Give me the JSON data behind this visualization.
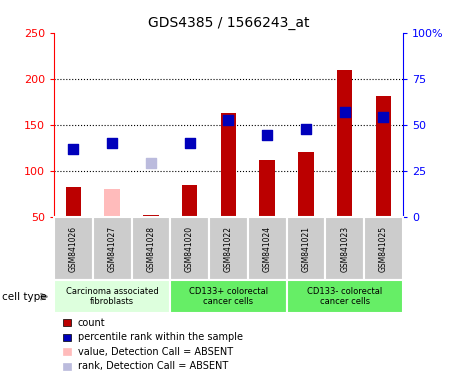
{
  "title": "GDS4385 / 1566243_at",
  "samples": [
    "GSM841026",
    "GSM841027",
    "GSM841028",
    "GSM841020",
    "GSM841022",
    "GSM841024",
    "GSM841021",
    "GSM841023",
    "GSM841025"
  ],
  "count_values": [
    83,
    80,
    52,
    85,
    163,
    112,
    120,
    209,
    181
  ],
  "count_absent": [
    false,
    true,
    false,
    false,
    false,
    false,
    false,
    false,
    false
  ],
  "percentile_values": [
    124,
    130,
    109,
    130,
    155,
    139,
    145,
    164,
    158
  ],
  "percentile_absent": [
    false,
    false,
    true,
    false,
    false,
    false,
    false,
    false,
    false
  ],
  "bar_color_present": "#bb0000",
  "bar_color_absent": "#ffbbbb",
  "dot_color_present": "#0000bb",
  "dot_color_absent": "#bbbbdd",
  "ylim_left": [
    50,
    250
  ],
  "ylim_right": [
    0,
    100
  ],
  "yticks_left": [
    50,
    100,
    150,
    200,
    250
  ],
  "yticks_right": [
    0,
    25,
    50,
    75,
    100
  ],
  "ytick_labels_right": [
    "0",
    "25",
    "50",
    "75",
    "100%"
  ],
  "gridlines": [
    100,
    150,
    200
  ],
  "groups": [
    {
      "label": "Carcinoma associated\nfibroblasts",
      "start": 0,
      "end": 3,
      "color": "#ddffdd"
    },
    {
      "label": "CD133+ colorectal\ncancer cells",
      "start": 3,
      "end": 6,
      "color": "#66ee66"
    },
    {
      "label": "CD133- colorectal\ncancer cells",
      "start": 6,
      "end": 9,
      "color": "#66ee66"
    }
  ],
  "cell_type_label": "cell type",
  "legend_items": [
    {
      "color": "#bb0000",
      "label": "count"
    },
    {
      "color": "#0000bb",
      "label": "percentile rank within the sample"
    },
    {
      "color": "#ffbbbb",
      "label": "value, Detection Call = ABSENT"
    },
    {
      "color": "#bbbbdd",
      "label": "rank, Detection Call = ABSENT"
    }
  ],
  "bar_width": 0.4,
  "dot_size": 55,
  "sample_box_color": "#cccccc",
  "plot_border_color": "#000000"
}
